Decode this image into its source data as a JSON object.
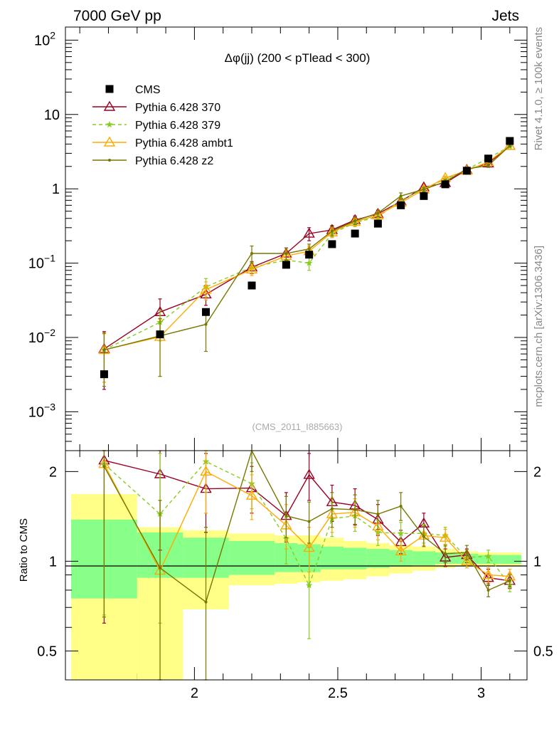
{
  "header": {
    "left": "7000 GeV pp",
    "right": "Jets",
    "side_top": "Rivet 4.1.0, ≥ 100k events",
    "side_bottom": "mcplots.cern.ch [arXiv:1306.3436]",
    "analysis": "(CMS_2011_I885663)"
  },
  "colors": {
    "cms": "#000000",
    "p370": "#990022",
    "p379": "#88cc22",
    "ambt1": "#ffaa00",
    "z2": "#777700",
    "band_inner": "#88ff88",
    "band_outer": "#ffff88"
  },
  "chart_data": {
    "type": "scatter",
    "title": "Δφ(jj) (200 < pTlead < 300)",
    "xlabel": "",
    "ylabel_top": "",
    "ylabel_ratio": "Ratio to CMS",
    "xlim": [
      1.55,
      3.16
    ],
    "ylim_top": [
      0.0003,
      150
    ],
    "yscale_top": "log",
    "ylim_ratio": [
      0.4,
      2.35
    ],
    "yscale_ratio": "log",
    "x_ticks": [
      {
        "value": 2.0,
        "label": "2"
      },
      {
        "value": 2.5,
        "label": "2.5"
      },
      {
        "value": 3.0,
        "label": "3"
      }
    ],
    "y_ticks_top": [
      {
        "value": 0.001,
        "base": "10",
        "exp": "−3"
      },
      {
        "value": 0.01,
        "base": "10",
        "exp": "−2"
      },
      {
        "value": 0.1,
        "base": "10",
        "exp": "−1"
      },
      {
        "value": 1,
        "base": "1",
        "exp": ""
      },
      {
        "value": 10,
        "base": "10",
        "exp": ""
      },
      {
        "value": 100,
        "base": "10",
        "exp": "2"
      }
    ],
    "y_ticks_ratio": [
      {
        "value": 0.5,
        "label": "0.5"
      },
      {
        "value": 1,
        "label": "1"
      },
      {
        "value": 2,
        "label": "2"
      }
    ],
    "bin_edges": [
      1.57,
      1.8,
      1.96,
      2.12,
      2.28,
      2.36,
      2.44,
      2.52,
      2.6,
      2.68,
      2.76,
      2.84,
      2.91,
      2.99,
      3.06,
      3.14
    ],
    "x": [
      1.685,
      1.88,
      2.04,
      2.2,
      2.32,
      2.4,
      2.48,
      2.56,
      2.64,
      2.72,
      2.8,
      2.875,
      2.95,
      3.025,
      3.1
    ],
    "band_inner": [
      [
        0.75,
        1.38
      ],
      [
        0.88,
        1.25
      ],
      [
        0.88,
        1.2
      ],
      [
        0.9,
        1.17
      ],
      [
        0.92,
        1.15
      ],
      [
        0.92,
        1.14
      ],
      [
        0.94,
        1.12
      ],
      [
        0.94,
        1.11
      ],
      [
        0.95,
        1.1
      ],
      [
        0.96,
        1.09
      ],
      [
        0.97,
        1.08
      ],
      [
        0.98,
        1.07
      ],
      [
        0.98,
        1.06
      ],
      [
        0.98,
        1.05
      ],
      [
        0.98,
        1.05
      ]
    ],
    "band_outer": [
      [
        0.4,
        1.68
      ],
      [
        0.4,
        1.3
      ],
      [
        0.69,
        1.27
      ],
      [
        0.83,
        1.24
      ],
      [
        0.84,
        1.22
      ],
      [
        0.85,
        1.22
      ],
      [
        0.86,
        1.2
      ],
      [
        0.87,
        1.17
      ],
      [
        0.89,
        1.15
      ],
      [
        0.91,
        1.13
      ],
      [
        0.93,
        1.12
      ],
      [
        0.95,
        1.1
      ],
      [
        0.96,
        1.08
      ],
      [
        0.96,
        1.07
      ],
      [
        0.96,
        1.07
      ]
    ],
    "series": [
      {
        "name": "CMS",
        "key": "cms",
        "marker": "square",
        "values": [
          0.0032,
          0.011,
          0.022,
          0.05,
          0.095,
          0.13,
          0.18,
          0.25,
          0.34,
          0.6,
          0.8,
          1.15,
          1.75,
          2.55,
          4.4
        ],
        "err_low": [
          0.0031,
          0.0105,
          0.0215,
          0.049,
          0.092,
          0.127,
          0.176,
          0.245,
          0.335,
          0.59,
          0.79,
          1.14,
          1.73,
          2.52,
          4.35
        ],
        "err_high": [
          0.0033,
          0.0115,
          0.0225,
          0.051,
          0.098,
          0.133,
          0.184,
          0.255,
          0.345,
          0.61,
          0.81,
          1.16,
          1.77,
          2.58,
          4.45
        ]
      },
      {
        "name": "Pythia 6.428 370",
        "key": "p370",
        "marker": "triangle",
        "line": "solid",
        "values": [
          0.007,
          0.022,
          0.038,
          0.088,
          0.135,
          0.25,
          0.28,
          0.38,
          0.46,
          0.68,
          1.05,
          1.2,
          1.8,
          2.2,
          3.8
        ],
        "err_low": [
          0.002,
          0.012,
          0.027,
          0.072,
          0.11,
          0.2,
          0.24,
          0.33,
          0.41,
          0.62,
          0.97,
          1.12,
          1.7,
          2.08,
          3.65
        ],
        "err_high": [
          0.012,
          0.033,
          0.05,
          0.105,
          0.16,
          0.3,
          0.32,
          0.43,
          0.51,
          0.74,
          1.13,
          1.28,
          1.9,
          2.32,
          3.95
        ],
        "ratio": [
          2.18,
          1.96,
          1.75,
          1.76,
          1.42,
          1.95,
          1.58,
          1.54,
          1.38,
          1.16,
          1.34,
          1.03,
          1.05,
          0.88,
          0.86
        ],
        "ratio_err_low": [
          0.62,
          1.09,
          1.25,
          1.45,
          1.16,
          1.6,
          1.36,
          1.33,
          1.22,
          1.06,
          1.23,
          0.96,
          0.99,
          0.83,
          0.81
        ],
        "ratio_err_high": [
          3.8,
          2.8,
          2.3,
          2.08,
          1.7,
          2.3,
          1.8,
          1.75,
          1.55,
          1.27,
          1.45,
          1.1,
          1.1,
          0.94,
          0.91
        ]
      },
      {
        "name": "Pythia 6.428 379",
        "key": "p379",
        "marker": "star",
        "line": "dashed",
        "values": [
          0.0068,
          0.016,
          0.048,
          0.088,
          0.11,
          0.1,
          0.25,
          0.35,
          0.42,
          0.7,
          1.0,
          1.35,
          1.8,
          2.6,
          3.7
        ],
        "err_low": [
          0.0025,
          0.009,
          0.035,
          0.073,
          0.09,
          0.08,
          0.22,
          0.31,
          0.38,
          0.64,
          0.93,
          1.27,
          1.7,
          2.48,
          3.55
        ],
        "err_high": [
          0.0112,
          0.023,
          0.062,
          0.103,
          0.13,
          0.12,
          0.28,
          0.39,
          0.46,
          0.76,
          1.07,
          1.43,
          1.9,
          2.72,
          3.85
        ],
        "ratio": [
          2.12,
          1.44,
          2.16,
          1.82,
          1.19,
          0.83,
          1.39,
          1.42,
          1.25,
          1.24,
          1.24,
          1.22,
          1.03,
          1.04,
          0.83
        ],
        "ratio_err_low": [
          0.66,
          0.62,
          1.7,
          1.5,
          0.98,
          0.55,
          1.21,
          1.26,
          1.13,
          1.13,
          1.15,
          1.14,
          0.97,
          0.99,
          0.79
        ],
        "ratio_err_high": [
          3.6,
          2.3,
          2.6,
          2.14,
          1.4,
          1.11,
          1.57,
          1.58,
          1.37,
          1.35,
          1.33,
          1.3,
          1.09,
          1.09,
          0.87
        ]
      },
      {
        "name": "Pythia 6.428 ambt1",
        "key": "ambt1",
        "marker": "triangle",
        "line": "solid",
        "values": [
          0.0068,
          0.0102,
          0.044,
          0.082,
          0.125,
          0.145,
          0.26,
          0.36,
          0.44,
          0.65,
          0.98,
          1.4,
          1.75,
          2.3,
          3.8
        ],
        "err_low": [
          0.0025,
          0.003,
          0.032,
          0.068,
          0.1,
          0.12,
          0.22,
          0.32,
          0.39,
          0.59,
          0.91,
          1.32,
          1.66,
          2.18,
          3.65
        ],
        "err_high": [
          0.0112,
          0.0175,
          0.056,
          0.097,
          0.15,
          0.17,
          0.3,
          0.4,
          0.49,
          0.71,
          1.05,
          1.48,
          1.85,
          2.42,
          3.95
        ],
        "ratio": [
          2.12,
          0.93,
          2.0,
          1.66,
          1.32,
          1.11,
          1.44,
          1.46,
          1.31,
          1.08,
          1.22,
          1.2,
          1.0,
          0.9,
          0.89
        ],
        "ratio_err_low": [
          0.65,
          0.4,
          1.45,
          1.38,
          1.1,
          0.92,
          1.25,
          1.3,
          1.18,
          1.0,
          1.13,
          1.12,
          0.95,
          0.85,
          0.85
        ],
        "ratio_err_high": [
          3.6,
          1.6,
          2.45,
          1.95,
          1.55,
          1.3,
          1.63,
          1.62,
          1.44,
          1.17,
          1.31,
          1.28,
          1.06,
          0.95,
          0.94
        ]
      },
      {
        "name": "Pythia 6.428 z2",
        "key": "z2",
        "marker": "dot",
        "line": "solid",
        "values": [
          0.0068,
          0.0105,
          0.015,
          0.135,
          0.135,
          0.155,
          0.27,
          0.37,
          0.47,
          0.8,
          0.98,
          1.25,
          1.85,
          2.05,
          3.8
        ],
        "err_low": [
          0.0022,
          0.003,
          0.0065,
          0.1,
          0.11,
          0.13,
          0.23,
          0.33,
          0.42,
          0.72,
          0.91,
          1.17,
          1.75,
          1.94,
          3.65
        ],
        "err_high": [
          0.0115,
          0.018,
          0.024,
          0.17,
          0.16,
          0.18,
          0.31,
          0.41,
          0.52,
          0.88,
          1.05,
          1.33,
          1.95,
          2.16,
          3.95
        ],
        "ratio": [
          2.08,
          0.95,
          0.73,
          2.42,
          1.42,
          1.36,
          1.5,
          1.49,
          1.44,
          1.53,
          1.21,
          1.06,
          1.07,
          0.8,
          0.86
        ],
        "ratio_err_low": [
          0.65,
          0.4,
          0.4,
          2.0,
          1.2,
          1.15,
          1.3,
          1.32,
          1.28,
          1.37,
          1.12,
          0.99,
          1.01,
          0.76,
          0.82
        ],
        "ratio_err_high": [
          3.6,
          1.6,
          1.3,
          2.9,
          1.65,
          1.58,
          1.7,
          1.67,
          1.6,
          1.7,
          1.31,
          1.13,
          1.13,
          0.84,
          0.9
        ]
      }
    ]
  }
}
